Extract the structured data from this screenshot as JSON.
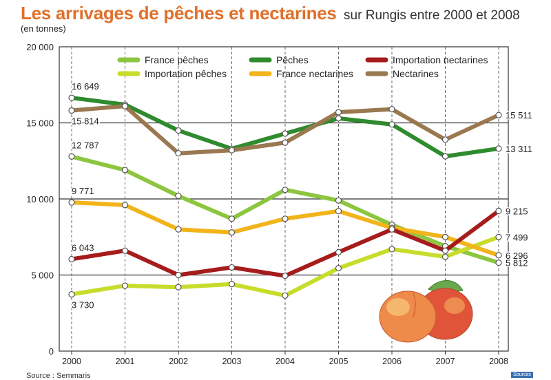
{
  "header": {
    "title": "Les arrivages de pêches et nectarines",
    "subtitle": "sur Rungis entre 2000 et 2008",
    "unit": "(en tonnes)"
  },
  "footer": {
    "source": "Source : Semmaris",
    "logo": "Sources"
  },
  "chart_data": {
    "type": "line",
    "title": "Les arrivages de pêches et nectarines",
    "subtitle": "sur Rungis entre 2000 et 2008",
    "ylabel": "(en tonnes)",
    "xlabel": "",
    "x": [
      "2000",
      "2001",
      "2002",
      "2003",
      "2004",
      "2005",
      "2006",
      "2007",
      "2008"
    ],
    "ylim": [
      0,
      20000
    ],
    "yticks": [
      0,
      5000,
      10000,
      15000,
      20000
    ],
    "ytick_labels": [
      "0",
      "5 000",
      "10 000",
      "15 000",
      "20 000"
    ],
    "grid": "horizontal lines at each y tick, dashed vertical lines at each year",
    "legend_position": "top",
    "series": [
      {
        "name": "France pêches",
        "color": "#8cc63f",
        "values": [
          12787,
          11900,
          10200,
          8700,
          10600,
          9900,
          8300,
          6900,
          5812
        ]
      },
      {
        "name": "Importation pêches",
        "color": "#c8dc2c",
        "values": [
          3730,
          4300,
          4200,
          4400,
          3650,
          5450,
          6700,
          6200,
          7499
        ]
      },
      {
        "name": "Pêches",
        "color": "#2e8b2e",
        "values": [
          16649,
          16200,
          14500,
          13300,
          14300,
          15300,
          14900,
          12800,
          13311
        ]
      },
      {
        "name": "France nectarines",
        "color": "#f2b41b",
        "values": [
          9771,
          9600,
          8000,
          7800,
          8700,
          9200,
          8100,
          7500,
          6296
        ]
      },
      {
        "name": "Importation nectarines",
        "color": "#a61c1c",
        "values": [
          6043,
          6600,
          5000,
          5500,
          4950,
          6500,
          8000,
          6600,
          9215
        ]
      },
      {
        "name": "Nectarines",
        "color": "#9a7850",
        "values": [
          15814,
          16100,
          13000,
          13200,
          13700,
          15700,
          15900,
          13900,
          15511
        ]
      }
    ],
    "annotations": [
      {
        "text": "16 649",
        "series": "Pêches",
        "x": "2000",
        "y": 16649,
        "pos": "above"
      },
      {
        "text": "15 814",
        "series": "Nectarines",
        "x": "2000",
        "y": 15814,
        "pos": "below"
      },
      {
        "text": "12 787",
        "series": "France pêches",
        "x": "2000",
        "y": 12787,
        "pos": "above"
      },
      {
        "text": "9 771",
        "series": "France nectarines",
        "x": "2000",
        "y": 9771,
        "pos": "above"
      },
      {
        "text": "6 043",
        "series": "Importation nectarines",
        "x": "2000",
        "y": 6043,
        "pos": "above"
      },
      {
        "text": "3 730",
        "series": "Importation pêches",
        "x": "2000",
        "y": 3730,
        "pos": "below"
      },
      {
        "text": "15 511",
        "series": "Nectarines",
        "x": "2008",
        "y": 15511,
        "pos": "right"
      },
      {
        "text": "13 311",
        "series": "Pêches",
        "x": "2008",
        "y": 13311,
        "pos": "right"
      },
      {
        "text": "9 215",
        "series": "Importation nectarines",
        "x": "2008",
        "y": 9215,
        "pos": "right"
      },
      {
        "text": "7 499",
        "series": "Importation pêches",
        "x": "2008",
        "y": 7499,
        "pos": "right"
      },
      {
        "text": "6 296",
        "series": "France nectarines",
        "x": "2008",
        "y": 6296,
        "pos": "right"
      },
      {
        "text": "5 812",
        "series": "France pêches",
        "x": "2008",
        "y": 5812,
        "pos": "right"
      }
    ]
  }
}
